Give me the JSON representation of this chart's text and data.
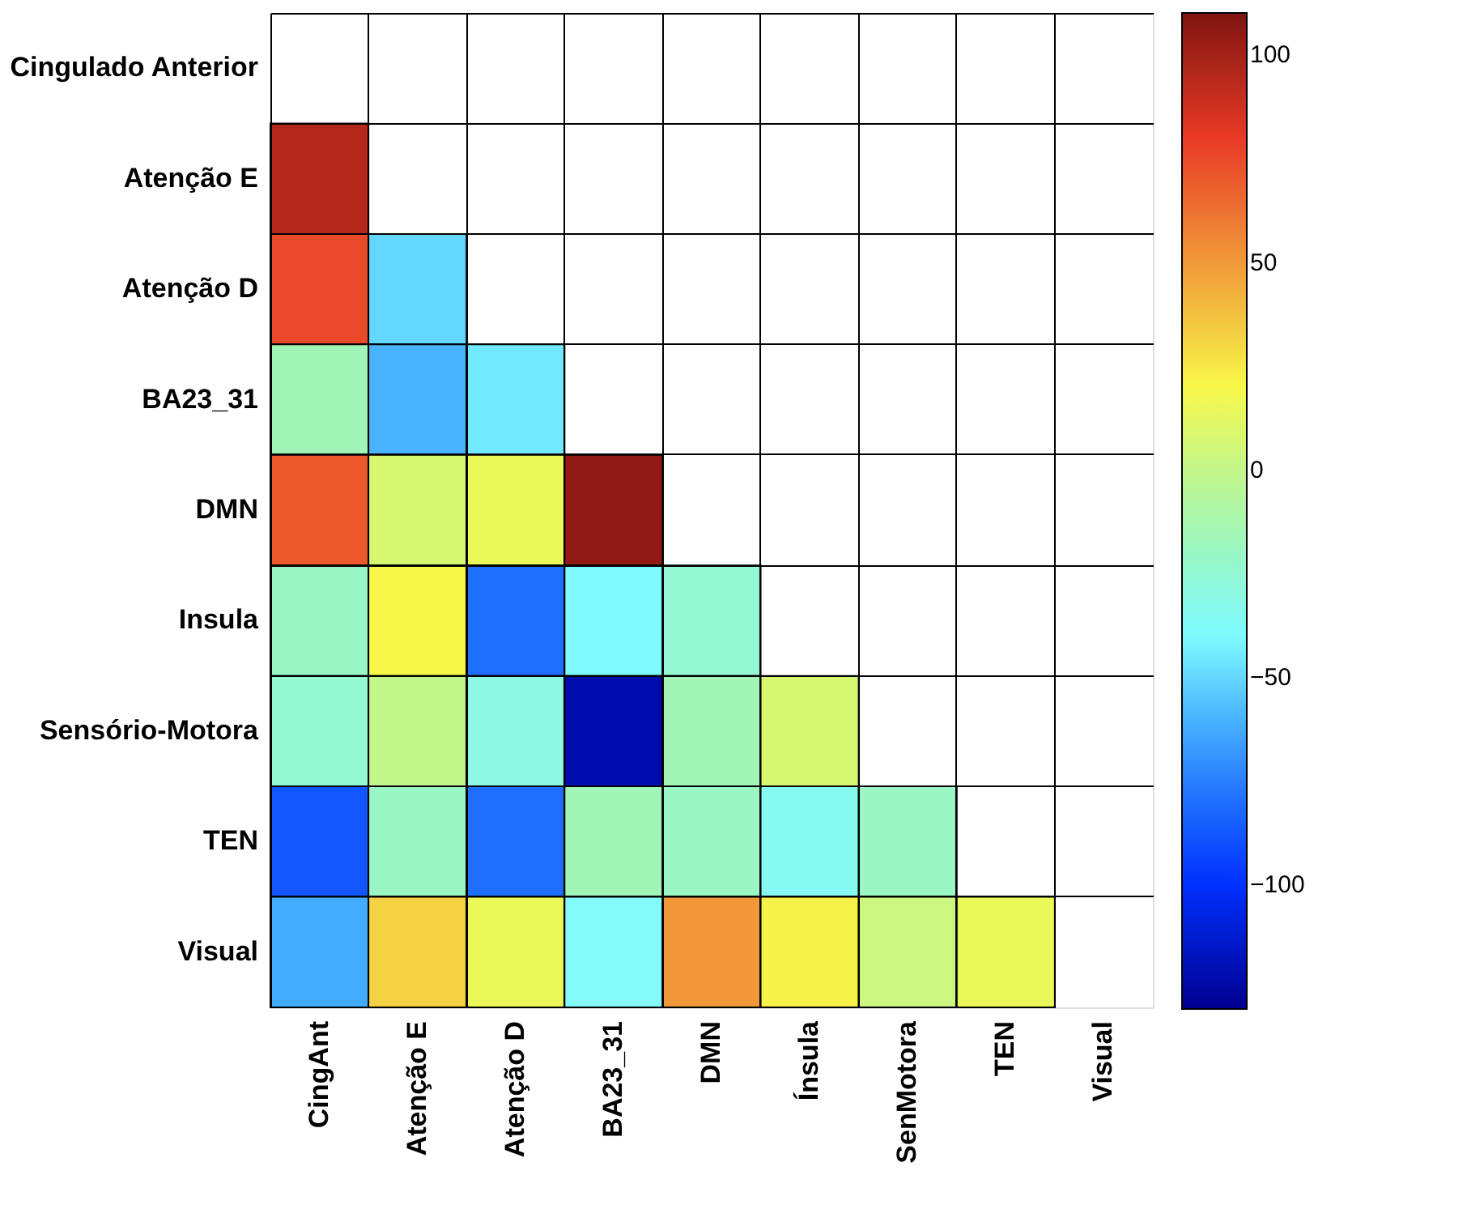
{
  "chart_data": {
    "type": "heatmap",
    "categories": [
      "CingAnt",
      "Atenção E",
      "Atenção D",
      "BA23_31",
      "DMN",
      "Ínsula",
      "SenMotora",
      "TEN",
      "Visual"
    ],
    "y_categories": [
      "Cingulado Anterior",
      "Atenção E",
      "Atenção D",
      "BA23_31",
      "DMN",
      "Insula",
      "Sensório-Motora",
      "TEN",
      "Visual"
    ],
    "cells": [
      [
        null,
        null,
        null,
        null,
        null,
        null,
        null,
        null,
        null
      ],
      [
        95,
        null,
        null,
        null,
        null,
        null,
        null,
        null,
        null
      ],
      [
        75,
        -50,
        null,
        null,
        null,
        null,
        null,
        null,
        null
      ],
      [
        -15,
        -60,
        -45,
        null,
        null,
        null,
        null,
        null,
        null
      ],
      [
        70,
        8,
        15,
        105,
        null,
        null,
        null,
        null,
        null
      ],
      [
        -20,
        20,
        -80,
        -40,
        -25,
        null,
        null,
        null,
        null
      ],
      [
        -25,
        0,
        -30,
        -122,
        -15,
        8,
        null,
        null,
        null
      ],
      [
        -88,
        -20,
        -80,
        -15,
        -20,
        -35,
        -20,
        null,
        null
      ],
      [
        -62,
        32,
        15,
        -38,
        50,
        22,
        3,
        15,
        null
      ]
    ],
    "clim": [
      -130,
      110
    ],
    "cticks": [
      -100,
      -50,
      0,
      50,
      100
    ]
  }
}
